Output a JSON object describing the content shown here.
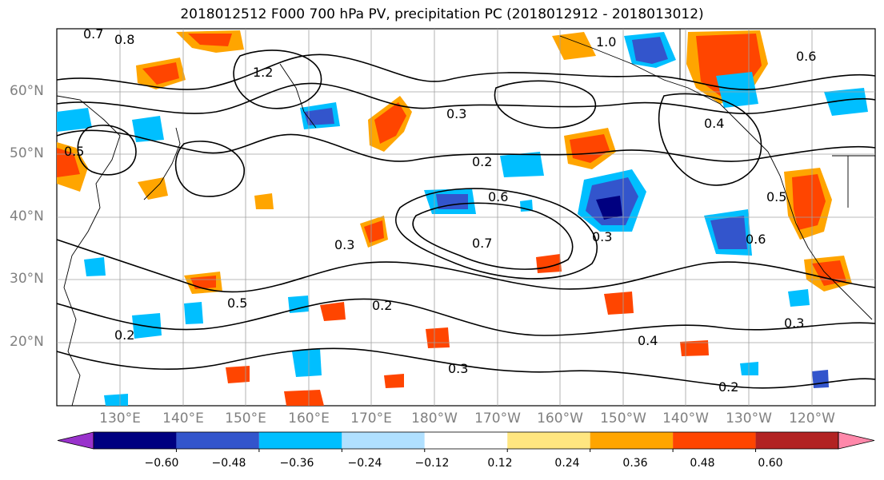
{
  "title": "2018012512 F000 700 hPa PV, precipitation PC (2018012912 - 2018013012)",
  "latitude_labels": [
    "60°N",
    "50°N",
    "40°N",
    "30°N",
    "20°N"
  ],
  "longitude_labels": [
    "130°E",
    "140°E",
    "150°E",
    "160°E",
    "170°E",
    "180°W",
    "170°W",
    "160°W",
    "150°W",
    "140°W",
    "130°W",
    "120°W"
  ],
  "contour_labels": [
    "0.7",
    "0.8",
    "1.2",
    "1.0",
    "0.6",
    "0.3",
    "0.2",
    "0.5",
    "0.4",
    "0.6",
    "0.7",
    "0.5",
    "0.3",
    "0.2",
    "0.3",
    "0.4",
    "0.2",
    "0.3",
    "0.2",
    "0.5",
    "0.6",
    "0.3"
  ],
  "colorbar": {
    "tick_labels": [
      "−0.60",
      "−0.48",
      "−0.36",
      "−0.24",
      "−0.12",
      "0.12",
      "0.24",
      "0.36",
      "0.48",
      "0.60"
    ],
    "colors": [
      "#9932CC",
      "#000080",
      "#3355CC",
      "#00BFFF",
      "#B0E0FF",
      "#FFFFFF",
      "#FFE680",
      "#FFA500",
      "#FF4500",
      "#B22222",
      "#FF88AA"
    ]
  },
  "shading_colors": {
    "neg_weak": "#00BFFF",
    "neg_mid": "#3355CC",
    "neg_strong": "#000080",
    "pos_weak": "#FFA500",
    "pos_mid": "#FF4500",
    "pos_strong": "#B22222"
  }
}
